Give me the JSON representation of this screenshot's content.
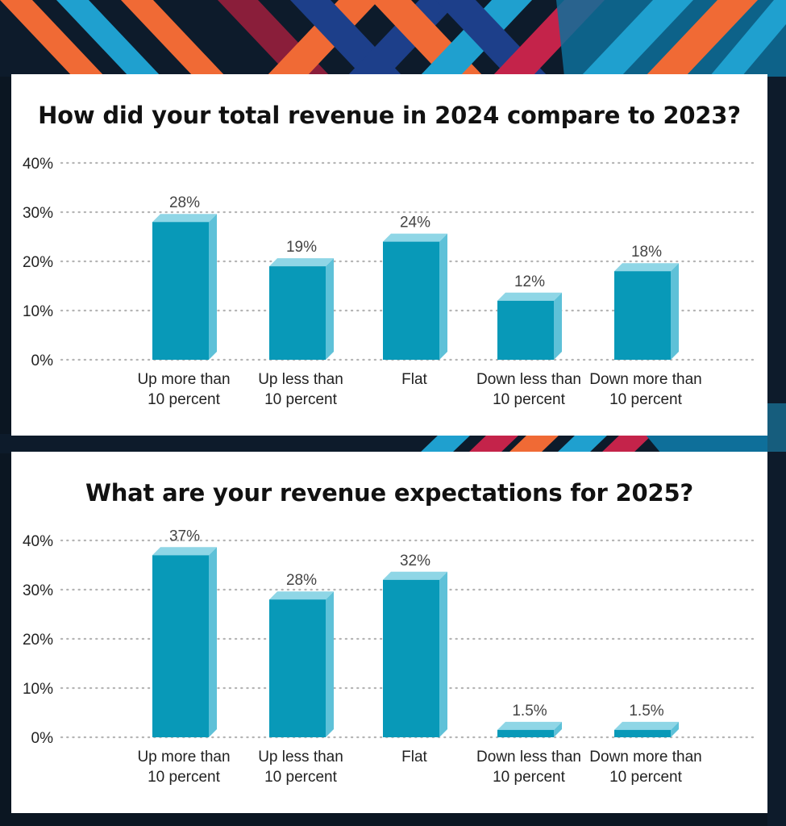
{
  "colors": {
    "bar_front": "#0899b8",
    "bar_side": "#5ec1d8",
    "bar_top": "#8fd6e6",
    "grid": "#b5b5b5",
    "text": "#222222",
    "label": "#444444"
  },
  "chart_data": [
    {
      "type": "bar",
      "title": "How did your total revenue in 2024 compare to 2023?",
      "categories": [
        [
          "Up more than",
          "10 percent"
        ],
        [
          "Up less than",
          "10 percent"
        ],
        [
          "Flat"
        ],
        [
          "Down less than",
          "10 percent"
        ],
        [
          "Down more than",
          "10 percent"
        ]
      ],
      "values": [
        28,
        19,
        24,
        12,
        18
      ],
      "data_labels": [
        "28%",
        "19%",
        "24%",
        "12%",
        "18%"
      ],
      "yticks": [
        "0%",
        "10%",
        "20%",
        "30%",
        "40%"
      ],
      "ylim": [
        0,
        40
      ],
      "grid": true,
      "grid_style": "dotted"
    },
    {
      "type": "bar",
      "title": "What are your revenue expectations for 2025?",
      "categories": [
        [
          "Up more than",
          "10 percent"
        ],
        [
          "Up less than",
          "10 percent"
        ],
        [
          "Flat"
        ],
        [
          "Down less than",
          "10 percent"
        ],
        [
          "Down more than",
          "10 percent"
        ]
      ],
      "values": [
        37,
        28,
        32,
        1.5,
        1.5
      ],
      "data_labels": [
        "37%",
        "28%",
        "32%",
        "1.5%",
        "1.5%"
      ],
      "yticks": [
        "0%",
        "10%",
        "20%",
        "30%",
        "40%"
      ],
      "ylim": [
        0,
        40
      ],
      "grid": true,
      "grid_style": "dotted"
    }
  ]
}
